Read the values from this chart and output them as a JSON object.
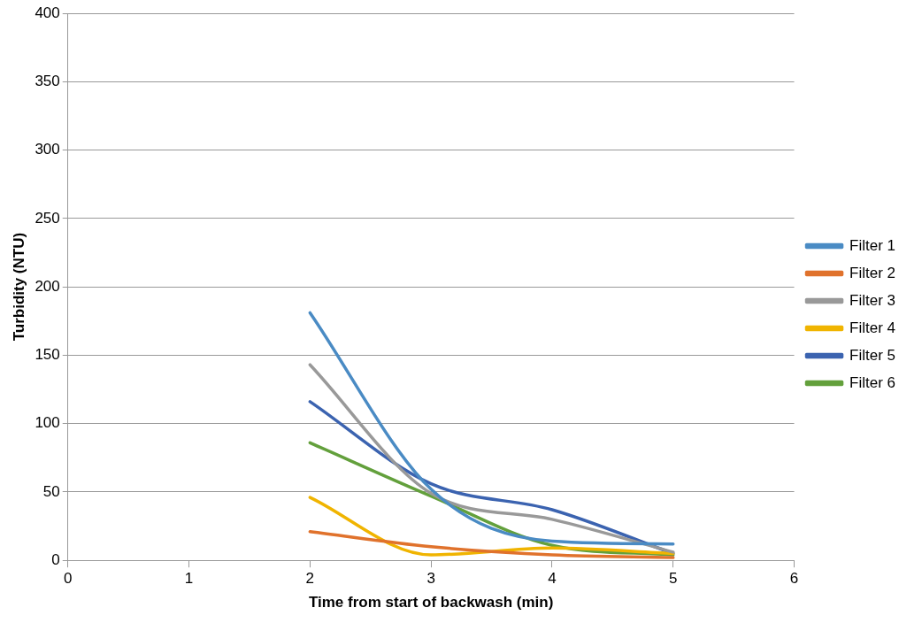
{
  "chart_data": {
    "type": "line",
    "xlabel": "Time from start of backwash (min)",
    "ylabel": "Turbidity (NTU)",
    "x": [
      2,
      3,
      4,
      5
    ],
    "series": [
      {
        "name": "Filter 1",
        "color": "#4a8bc4",
        "values": [
          181,
          52,
          14,
          12
        ]
      },
      {
        "name": "Filter 2",
        "color": "#e0722c",
        "values": [
          21,
          10,
          4,
          2
        ]
      },
      {
        "name": "Filter 3",
        "color": "#999999",
        "values": [
          143,
          49,
          30,
          6
        ]
      },
      {
        "name": "Filter 4",
        "color": "#f0b400",
        "values": [
          46,
          4,
          9,
          5
        ]
      },
      {
        "name": "Filter 5",
        "color": "#3b63b0",
        "values": [
          116,
          56,
          37,
          5
        ]
      },
      {
        "name": "Filter 6",
        "color": "#63a03c",
        "values": [
          86,
          47,
          11,
          4
        ]
      }
    ],
    "xlim": [
      0,
      6
    ],
    "xticks": [
      0,
      1,
      2,
      3,
      4,
      5,
      6
    ],
    "ylim": [
      0,
      400
    ],
    "yticks": [
      0,
      50,
      100,
      150,
      200,
      250,
      300,
      350,
      400
    ],
    "grid": "y",
    "legend": "right",
    "marker": "none",
    "line_style": "solid"
  }
}
